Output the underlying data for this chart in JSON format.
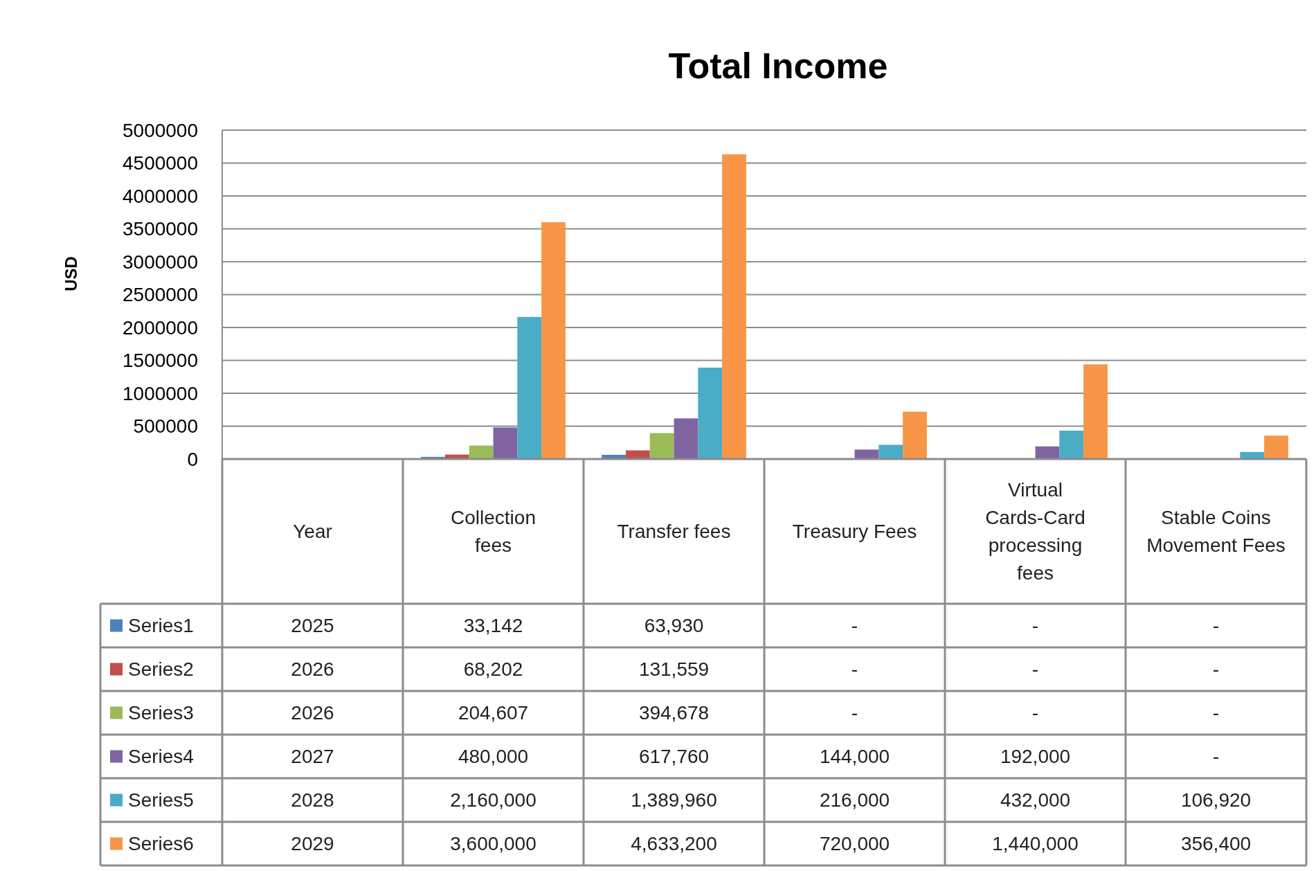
{
  "chart_data": {
    "type": "bar",
    "title": "Total Income",
    "ylabel": "USD",
    "categories": [
      "Year",
      "Collection fees",
      "Transfer fees",
      "Treasury Fees",
      "Virtual Cards-Card processing fees",
      "Stable Coins Movement Fees"
    ],
    "series": [
      {
        "name": "Series1",
        "color": "#4f81bd",
        "values": [
          2025,
          33142,
          63930,
          null,
          null,
          null
        ],
        "value_labels": [
          "2025",
          "33,142",
          "63,930",
          "-",
          "-",
          "-"
        ]
      },
      {
        "name": "Series2",
        "color": "#c0504d",
        "values": [
          2026,
          68202,
          131559,
          null,
          null,
          null
        ],
        "value_labels": [
          "2026",
          "68,202",
          "131,559",
          "-",
          "-",
          "-"
        ]
      },
      {
        "name": "Series3",
        "color": "#9bbb59",
        "values": [
          2026,
          204607,
          394678,
          null,
          null,
          null
        ],
        "value_labels": [
          "2026",
          "204,607",
          "394,678",
          "-",
          "-",
          "-"
        ]
      },
      {
        "name": "Series4",
        "color": "#8064a2",
        "values": [
          2027,
          480000,
          617760,
          144000,
          192000,
          null
        ],
        "value_labels": [
          "2027",
          "480,000",
          "617,760",
          "144,000",
          "192,000",
          "-"
        ]
      },
      {
        "name": "Series5",
        "color": "#4bacc6",
        "values": [
          2028,
          2160000,
          1389960,
          216000,
          432000,
          106920
        ],
        "value_labels": [
          "2028",
          "2,160,000",
          "1,389,960",
          "216,000",
          "432,000",
          "106,920"
        ]
      },
      {
        "name": "Series6",
        "color": "#f79646",
        "values": [
          2029,
          3600000,
          4633200,
          720000,
          1440000,
          356400
        ],
        "value_labels": [
          "2029",
          "3,600,000",
          "4,633,200",
          "720,000",
          "1,440,000",
          "356,400"
        ]
      }
    ],
    "ylim": [
      0,
      5000000
    ],
    "yticks": [
      0,
      500000,
      1000000,
      1500000,
      2000000,
      2500000,
      3000000,
      3500000,
      4000000,
      4500000,
      5000000
    ],
    "grid": "y",
    "legend": "bottom left"
  }
}
